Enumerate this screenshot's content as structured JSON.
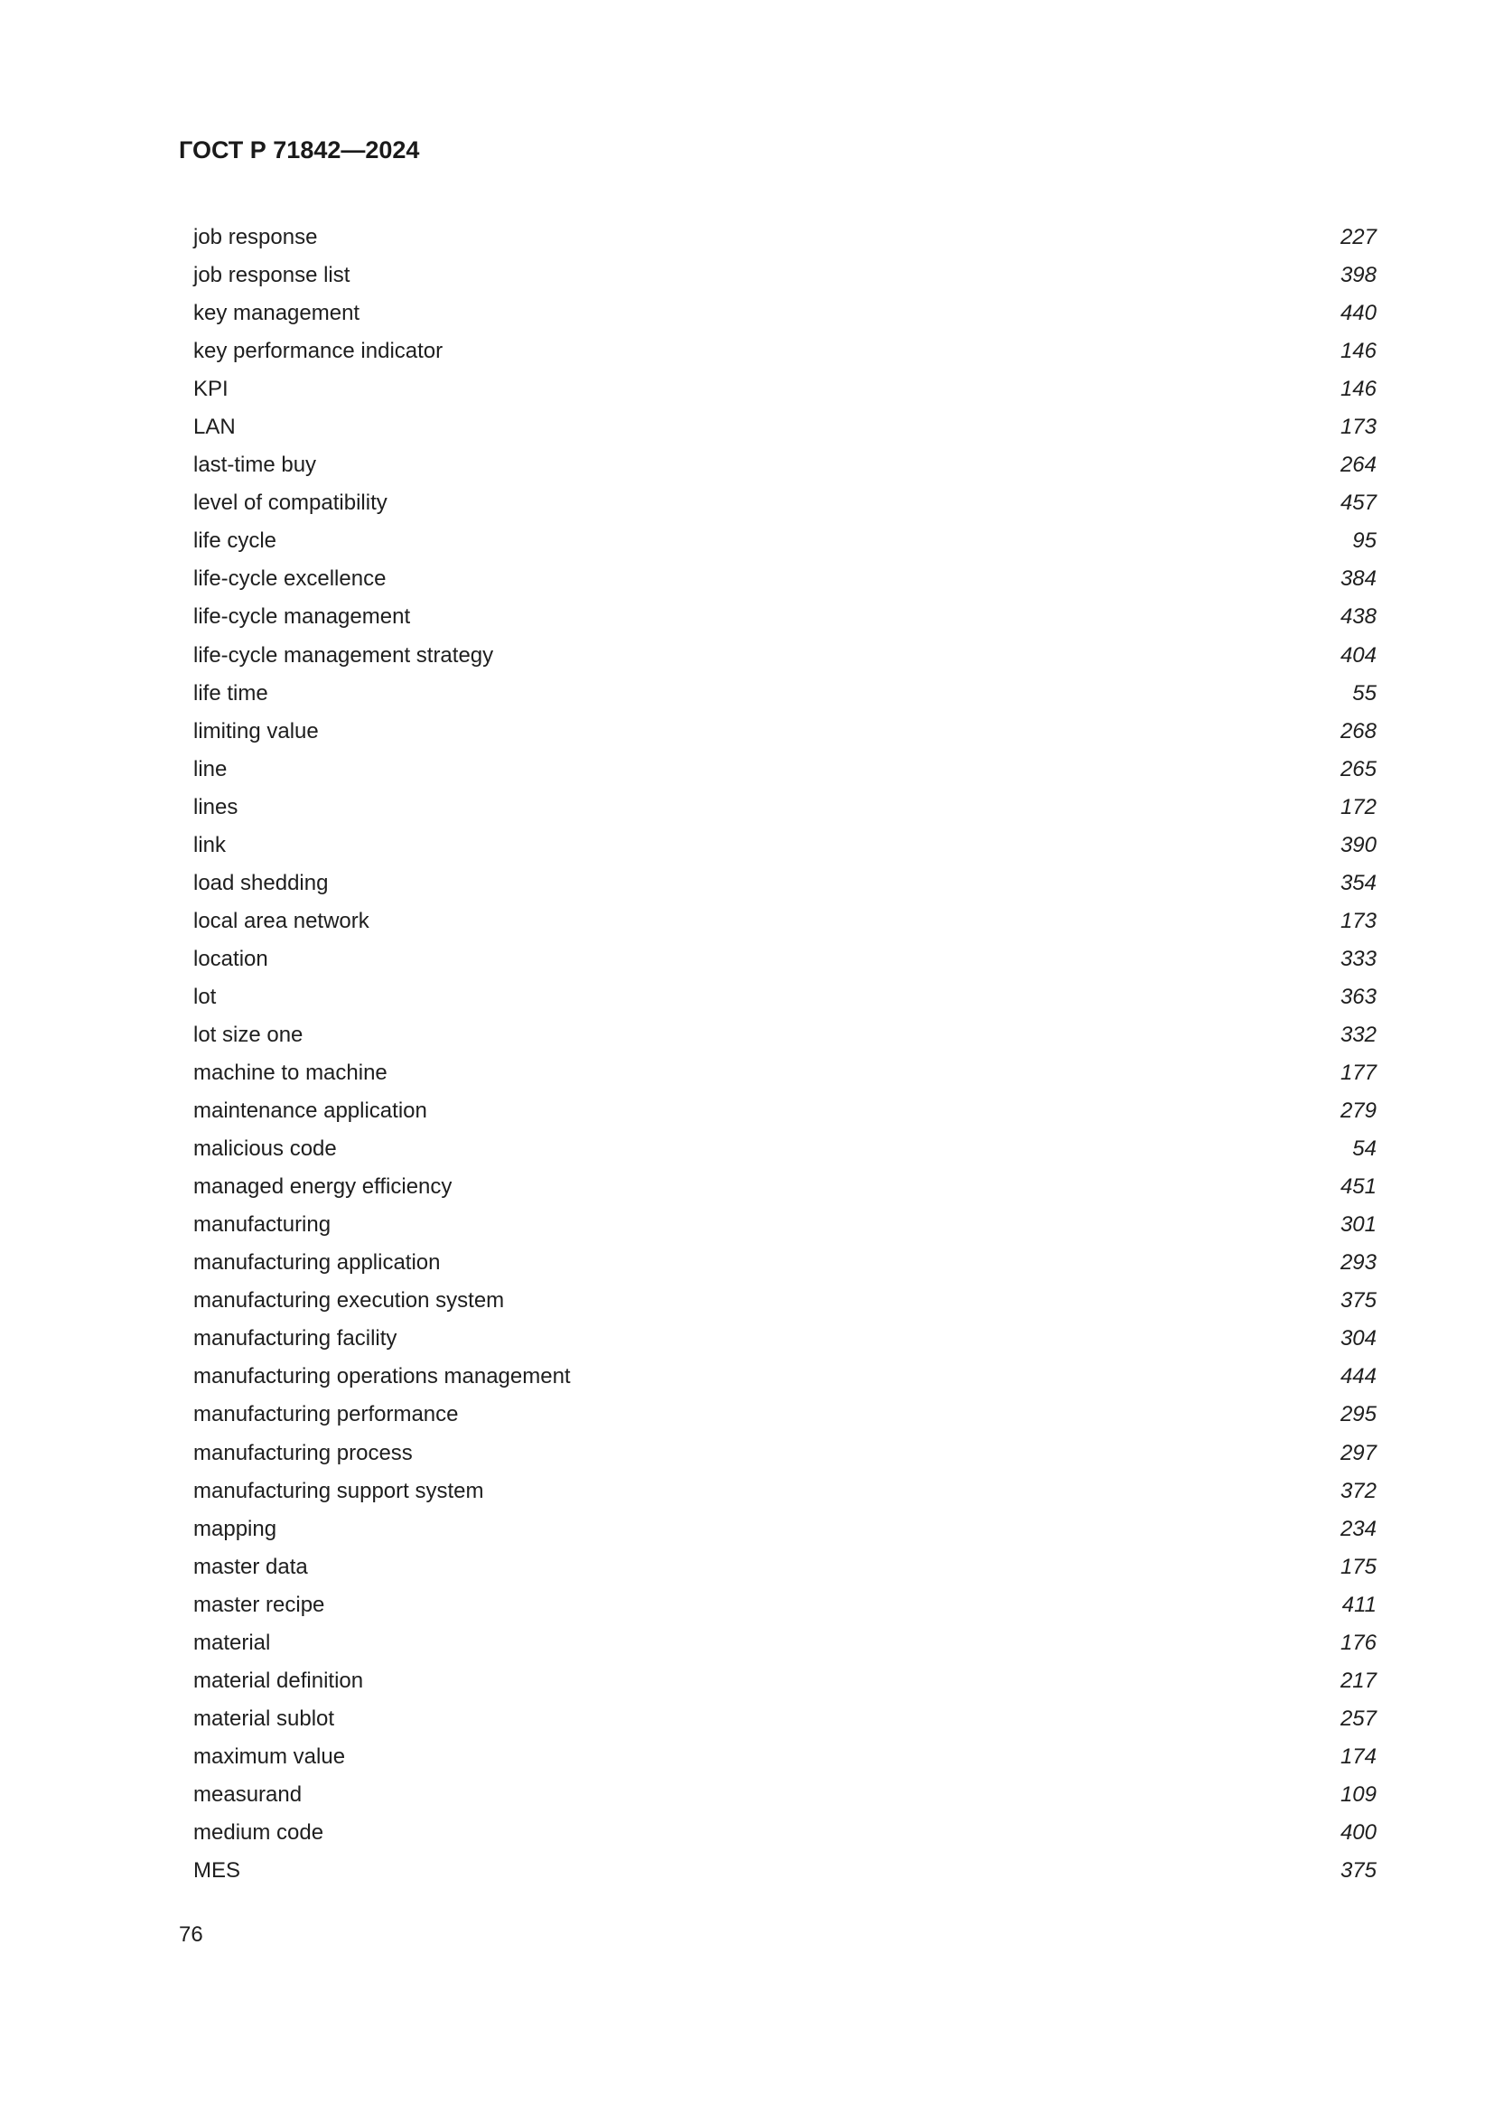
{
  "header": {
    "title": "ГОСТ Р 71842—2024"
  },
  "entries": [
    {
      "term": "job response",
      "page": "227"
    },
    {
      "term": "job response list",
      "page": "398"
    },
    {
      "term": "key management",
      "page": "440"
    },
    {
      "term": "key performance indicator",
      "page": "146"
    },
    {
      "term": "KPI",
      "page": "146"
    },
    {
      "term": "LAN",
      "page": "173"
    },
    {
      "term": "last-time buy",
      "page": "264"
    },
    {
      "term": "level of compatibility",
      "page": "457"
    },
    {
      "term": "life cycle",
      "page": "95"
    },
    {
      "term": "life-cycle excellence",
      "page": "384"
    },
    {
      "term": "life-cycle management",
      "page": "438"
    },
    {
      "term": "life-cycle management strategy",
      "page": "404"
    },
    {
      "term": "life time",
      "page": "55"
    },
    {
      "term": "limiting value",
      "page": "268"
    },
    {
      "term": "line",
      "page": "265"
    },
    {
      "term": "lines",
      "page": "172"
    },
    {
      "term": "link",
      "page": "390"
    },
    {
      "term": "load shedding",
      "page": "354"
    },
    {
      "term": "local area network",
      "page": "173"
    },
    {
      "term": "location",
      "page": "333"
    },
    {
      "term": "lot",
      "page": "363"
    },
    {
      "term": "lot size one",
      "page": "332"
    },
    {
      "term": "machine to machine",
      "page": "177"
    },
    {
      "term": "maintenance application",
      "page": "279"
    },
    {
      "term": "malicious code",
      "page": "54"
    },
    {
      "term": "managed energy efficiency",
      "page": "451"
    },
    {
      "term": "manufacturing",
      "page": "301"
    },
    {
      "term": "manufacturing application",
      "page": "293"
    },
    {
      "term": "manufacturing execution system",
      "page": "375"
    },
    {
      "term": "manufacturing facility",
      "page": "304"
    },
    {
      "term": "manufacturing operations management",
      "page": "444"
    },
    {
      "term": "manufacturing performance",
      "page": "295"
    },
    {
      "term": "manufacturing process",
      "page": "297"
    },
    {
      "term": "manufacturing support system",
      "page": "372"
    },
    {
      "term": "mapping",
      "page": "234"
    },
    {
      "term": "master data",
      "page": "175"
    },
    {
      "term": "master recipe",
      "page": "411"
    },
    {
      "term": "material",
      "page": "176"
    },
    {
      "term": "material definition",
      "page": "217"
    },
    {
      "term": "material sublot",
      "page": "257"
    },
    {
      "term": "maximum value",
      "page": "174"
    },
    {
      "term": "measurand",
      "page": "109"
    },
    {
      "term": "medium code",
      "page": "400"
    },
    {
      "term": "MES",
      "page": "375"
    }
  ],
  "footer": {
    "page_number": "76"
  }
}
